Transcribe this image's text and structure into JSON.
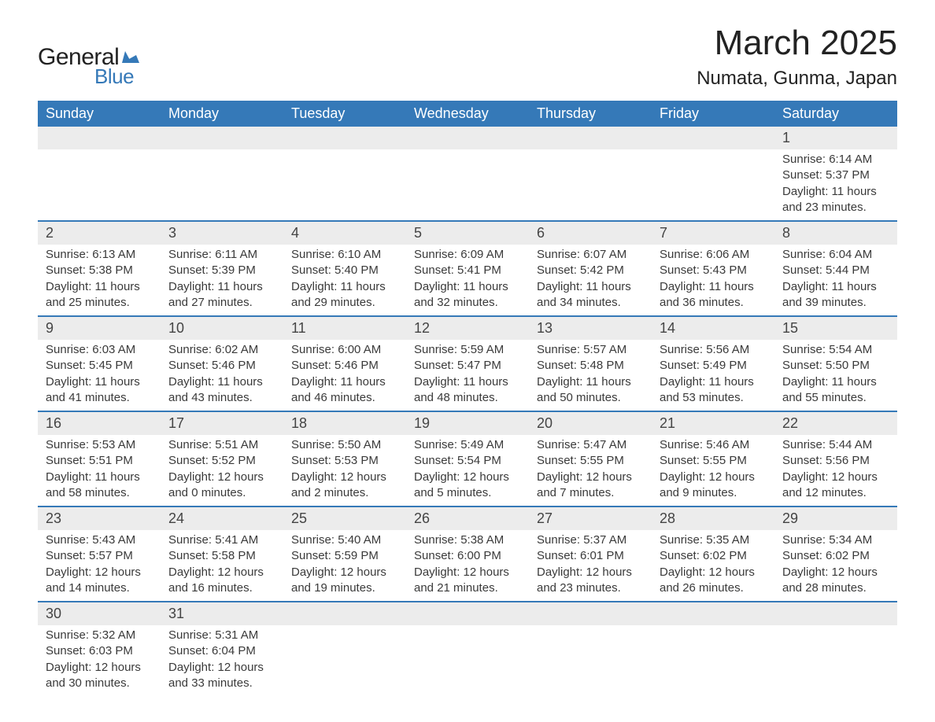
{
  "brand": {
    "word1": "General",
    "word2": "Blue",
    "word1_color": "#222222",
    "word2_color": "#3579b8",
    "flag_color": "#3579b8"
  },
  "title": "March 2025",
  "location": "Numata, Gunma, Japan",
  "colors": {
    "header_bg": "#3579b8",
    "header_text": "#ffffff",
    "band_bg": "#ececec",
    "separator": "#3579b8",
    "body_text": "#3a3a3a",
    "page_bg": "#ffffff"
  },
  "fonts": {
    "title_size_pt": 33,
    "location_size_pt": 18,
    "dow_size_pt": 14,
    "daynum_size_pt": 14,
    "cell_size_pt": 11
  },
  "days_of_week": [
    "Sunday",
    "Monday",
    "Tuesday",
    "Wednesday",
    "Thursday",
    "Friday",
    "Saturday"
  ],
  "weeks": [
    {
      "nums": [
        "",
        "",
        "",
        "",
        "",
        "",
        "1"
      ],
      "cells": [
        null,
        null,
        null,
        null,
        null,
        null,
        {
          "sunrise": "Sunrise: 6:14 AM",
          "sunset": "Sunset: 5:37 PM",
          "day1": "Daylight: 11 hours",
          "day2": "and 23 minutes."
        }
      ]
    },
    {
      "nums": [
        "2",
        "3",
        "4",
        "5",
        "6",
        "7",
        "8"
      ],
      "cells": [
        {
          "sunrise": "Sunrise: 6:13 AM",
          "sunset": "Sunset: 5:38 PM",
          "day1": "Daylight: 11 hours",
          "day2": "and 25 minutes."
        },
        {
          "sunrise": "Sunrise: 6:11 AM",
          "sunset": "Sunset: 5:39 PM",
          "day1": "Daylight: 11 hours",
          "day2": "and 27 minutes."
        },
        {
          "sunrise": "Sunrise: 6:10 AM",
          "sunset": "Sunset: 5:40 PM",
          "day1": "Daylight: 11 hours",
          "day2": "and 29 minutes."
        },
        {
          "sunrise": "Sunrise: 6:09 AM",
          "sunset": "Sunset: 5:41 PM",
          "day1": "Daylight: 11 hours",
          "day2": "and 32 minutes."
        },
        {
          "sunrise": "Sunrise: 6:07 AM",
          "sunset": "Sunset: 5:42 PM",
          "day1": "Daylight: 11 hours",
          "day2": "and 34 minutes."
        },
        {
          "sunrise": "Sunrise: 6:06 AM",
          "sunset": "Sunset: 5:43 PM",
          "day1": "Daylight: 11 hours",
          "day2": "and 36 minutes."
        },
        {
          "sunrise": "Sunrise: 6:04 AM",
          "sunset": "Sunset: 5:44 PM",
          "day1": "Daylight: 11 hours",
          "day2": "and 39 minutes."
        }
      ]
    },
    {
      "nums": [
        "9",
        "10",
        "11",
        "12",
        "13",
        "14",
        "15"
      ],
      "cells": [
        {
          "sunrise": "Sunrise: 6:03 AM",
          "sunset": "Sunset: 5:45 PM",
          "day1": "Daylight: 11 hours",
          "day2": "and 41 minutes."
        },
        {
          "sunrise": "Sunrise: 6:02 AM",
          "sunset": "Sunset: 5:46 PM",
          "day1": "Daylight: 11 hours",
          "day2": "and 43 minutes."
        },
        {
          "sunrise": "Sunrise: 6:00 AM",
          "sunset": "Sunset: 5:46 PM",
          "day1": "Daylight: 11 hours",
          "day2": "and 46 minutes."
        },
        {
          "sunrise": "Sunrise: 5:59 AM",
          "sunset": "Sunset: 5:47 PM",
          "day1": "Daylight: 11 hours",
          "day2": "and 48 minutes."
        },
        {
          "sunrise": "Sunrise: 5:57 AM",
          "sunset": "Sunset: 5:48 PM",
          "day1": "Daylight: 11 hours",
          "day2": "and 50 minutes."
        },
        {
          "sunrise": "Sunrise: 5:56 AM",
          "sunset": "Sunset: 5:49 PM",
          "day1": "Daylight: 11 hours",
          "day2": "and 53 minutes."
        },
        {
          "sunrise": "Sunrise: 5:54 AM",
          "sunset": "Sunset: 5:50 PM",
          "day1": "Daylight: 11 hours",
          "day2": "and 55 minutes."
        }
      ]
    },
    {
      "nums": [
        "16",
        "17",
        "18",
        "19",
        "20",
        "21",
        "22"
      ],
      "cells": [
        {
          "sunrise": "Sunrise: 5:53 AM",
          "sunset": "Sunset: 5:51 PM",
          "day1": "Daylight: 11 hours",
          "day2": "and 58 minutes."
        },
        {
          "sunrise": "Sunrise: 5:51 AM",
          "sunset": "Sunset: 5:52 PM",
          "day1": "Daylight: 12 hours",
          "day2": "and 0 minutes."
        },
        {
          "sunrise": "Sunrise: 5:50 AM",
          "sunset": "Sunset: 5:53 PM",
          "day1": "Daylight: 12 hours",
          "day2": "and 2 minutes."
        },
        {
          "sunrise": "Sunrise: 5:49 AM",
          "sunset": "Sunset: 5:54 PM",
          "day1": "Daylight: 12 hours",
          "day2": "and 5 minutes."
        },
        {
          "sunrise": "Sunrise: 5:47 AM",
          "sunset": "Sunset: 5:55 PM",
          "day1": "Daylight: 12 hours",
          "day2": "and 7 minutes."
        },
        {
          "sunrise": "Sunrise: 5:46 AM",
          "sunset": "Sunset: 5:55 PM",
          "day1": "Daylight: 12 hours",
          "day2": "and 9 minutes."
        },
        {
          "sunrise": "Sunrise: 5:44 AM",
          "sunset": "Sunset: 5:56 PM",
          "day1": "Daylight: 12 hours",
          "day2": "and 12 minutes."
        }
      ]
    },
    {
      "nums": [
        "23",
        "24",
        "25",
        "26",
        "27",
        "28",
        "29"
      ],
      "cells": [
        {
          "sunrise": "Sunrise: 5:43 AM",
          "sunset": "Sunset: 5:57 PM",
          "day1": "Daylight: 12 hours",
          "day2": "and 14 minutes."
        },
        {
          "sunrise": "Sunrise: 5:41 AM",
          "sunset": "Sunset: 5:58 PM",
          "day1": "Daylight: 12 hours",
          "day2": "and 16 minutes."
        },
        {
          "sunrise": "Sunrise: 5:40 AM",
          "sunset": "Sunset: 5:59 PM",
          "day1": "Daylight: 12 hours",
          "day2": "and 19 minutes."
        },
        {
          "sunrise": "Sunrise: 5:38 AM",
          "sunset": "Sunset: 6:00 PM",
          "day1": "Daylight: 12 hours",
          "day2": "and 21 minutes."
        },
        {
          "sunrise": "Sunrise: 5:37 AM",
          "sunset": "Sunset: 6:01 PM",
          "day1": "Daylight: 12 hours",
          "day2": "and 23 minutes."
        },
        {
          "sunrise": "Sunrise: 5:35 AM",
          "sunset": "Sunset: 6:02 PM",
          "day1": "Daylight: 12 hours",
          "day2": "and 26 minutes."
        },
        {
          "sunrise": "Sunrise: 5:34 AM",
          "sunset": "Sunset: 6:02 PM",
          "day1": "Daylight: 12 hours",
          "day2": "and 28 minutes."
        }
      ]
    },
    {
      "nums": [
        "30",
        "31",
        "",
        "",
        "",
        "",
        ""
      ],
      "cells": [
        {
          "sunrise": "Sunrise: 5:32 AM",
          "sunset": "Sunset: 6:03 PM",
          "day1": "Daylight: 12 hours",
          "day2": "and 30 minutes."
        },
        {
          "sunrise": "Sunrise: 5:31 AM",
          "sunset": "Sunset: 6:04 PM",
          "day1": "Daylight: 12 hours",
          "day2": "and 33 minutes."
        },
        null,
        null,
        null,
        null,
        null
      ]
    }
  ]
}
